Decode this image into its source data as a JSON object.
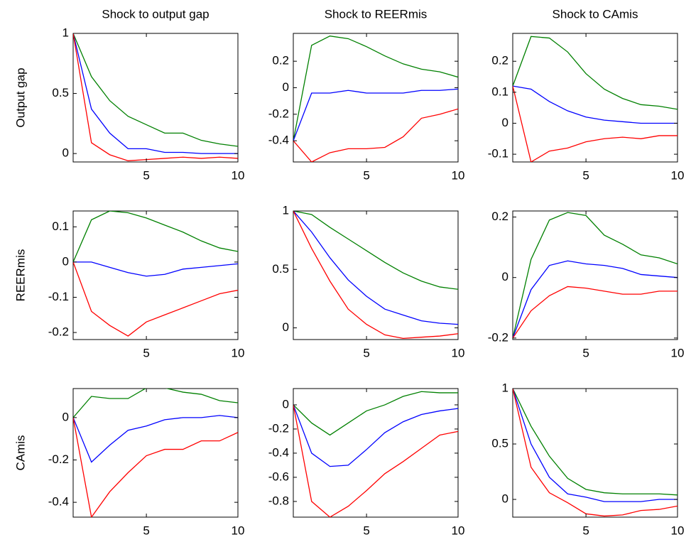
{
  "chart_data": [
    {
      "type": "line",
      "title": "Shock to output gap",
      "ylabel": "Output gap",
      "x": [
        1,
        2,
        3,
        4,
        5,
        6,
        7,
        8,
        9,
        10
      ],
      "xlim": [
        1,
        10
      ],
      "xticks": [
        5,
        10
      ],
      "ylim": [
        -0.07,
        1
      ],
      "yticks": [
        0,
        0.5,
        1
      ],
      "series": [
        {
          "color": "#008000",
          "values": [
            1,
            0.64,
            0.44,
            0.31,
            0.24,
            0.17,
            0.17,
            0.11,
            0.08,
            0.06
          ]
        },
        {
          "color": "#0000ff",
          "values": [
            1,
            0.37,
            0.17,
            0.04,
            0.04,
            0.01,
            0.01,
            0,
            0,
            0
          ]
        },
        {
          "color": "#ff0000",
          "values": [
            1,
            0.09,
            -0.01,
            -0.06,
            -0.05,
            -0.04,
            -0.03,
            -0.04,
            -0.03,
            -0.04
          ]
        }
      ]
    },
    {
      "type": "line",
      "title": "Shock to REERmis",
      "x": [
        1,
        2,
        3,
        4,
        5,
        6,
        7,
        8,
        9,
        10
      ],
      "xlim": [
        1,
        10
      ],
      "xticks": [
        5,
        10
      ],
      "ylim": [
        -0.56,
        0.41
      ],
      "yticks": [
        -0.4,
        -0.2,
        0,
        0.2
      ],
      "series": [
        {
          "color": "#008000",
          "values": [
            -0.4,
            0.32,
            0.39,
            0.37,
            0.31,
            0.24,
            0.18,
            0.14,
            0.12,
            0.08
          ]
        },
        {
          "color": "#0000ff",
          "values": [
            -0.4,
            -0.04,
            -0.04,
            -0.02,
            -0.04,
            -0.04,
            -0.04,
            -0.02,
            -0.02,
            -0.01
          ]
        },
        {
          "color": "#ff0000",
          "values": [
            -0.4,
            -0.56,
            -0.49,
            -0.46,
            -0.46,
            -0.45,
            -0.37,
            -0.23,
            -0.2,
            -0.16
          ]
        }
      ]
    },
    {
      "type": "line",
      "title": "Shock to CAmis",
      "x": [
        1,
        2,
        3,
        4,
        5,
        6,
        7,
        8,
        9,
        10
      ],
      "xlim": [
        1,
        10
      ],
      "xticks": [
        5,
        10
      ],
      "ylim": [
        -0.125,
        0.29
      ],
      "yticks": [
        -0.1,
        0,
        0.1,
        0.2
      ],
      "series": [
        {
          "color": "#008000",
          "values": [
            0.12,
            0.28,
            0.275,
            0.23,
            0.16,
            0.11,
            0.08,
            0.06,
            0.055,
            0.045
          ]
        },
        {
          "color": "#0000ff",
          "values": [
            0.12,
            0.11,
            0.07,
            0.04,
            0.02,
            0.01,
            0.005,
            0,
            0,
            0
          ]
        },
        {
          "color": "#ff0000",
          "values": [
            0.12,
            -0.125,
            -0.09,
            -0.08,
            -0.06,
            -0.05,
            -0.045,
            -0.05,
            -0.04,
            -0.04
          ]
        }
      ]
    },
    {
      "type": "line",
      "ylabel": "REERmis",
      "x": [
        1,
        2,
        3,
        4,
        5,
        6,
        7,
        8,
        9,
        10
      ],
      "xlim": [
        1,
        10
      ],
      "xticks": [
        5,
        10
      ],
      "ylim": [
        -0.22,
        0.145
      ],
      "yticks": [
        -0.2,
        -0.1,
        0,
        0.1
      ],
      "series": [
        {
          "color": "#008000",
          "values": [
            0,
            0.12,
            0.145,
            0.14,
            0.125,
            0.105,
            0.085,
            0.06,
            0.04,
            0.03
          ]
        },
        {
          "color": "#0000ff",
          "values": [
            0,
            0,
            -0.015,
            -0.03,
            -0.04,
            -0.035,
            -0.02,
            -0.015,
            -0.01,
            -0.005
          ]
        },
        {
          "color": "#ff0000",
          "values": [
            0,
            -0.14,
            -0.18,
            -0.21,
            -0.17,
            -0.15,
            -0.13,
            -0.11,
            -0.09,
            -0.08
          ]
        }
      ]
    },
    {
      "type": "line",
      "x": [
        1,
        2,
        3,
        4,
        5,
        6,
        7,
        8,
        9,
        10
      ],
      "xlim": [
        1,
        10
      ],
      "xticks": [
        5,
        10
      ],
      "ylim": [
        -0.1,
        1
      ],
      "yticks": [
        0,
        0.5,
        1
      ],
      "series": [
        {
          "color": "#008000",
          "values": [
            1,
            0.97,
            0.86,
            0.76,
            0.66,
            0.56,
            0.47,
            0.4,
            0.35,
            0.33
          ]
        },
        {
          "color": "#0000ff",
          "values": [
            1,
            0.82,
            0.6,
            0.41,
            0.27,
            0.16,
            0.11,
            0.06,
            0.04,
            0.03
          ]
        },
        {
          "color": "#ff0000",
          "values": [
            1,
            0.68,
            0.4,
            0.16,
            0.03,
            -0.06,
            -0.09,
            -0.08,
            -0.07,
            -0.05
          ]
        }
      ]
    },
    {
      "type": "line",
      "x": [
        1,
        2,
        3,
        4,
        5,
        6,
        7,
        8,
        9,
        10
      ],
      "xlim": [
        1,
        10
      ],
      "xticks": [
        5,
        10
      ],
      "ylim": [
        -0.205,
        0.22
      ],
      "yticks": [
        -0.2,
        0,
        0.2
      ],
      "series": [
        {
          "color": "#008000",
          "values": [
            -0.2,
            0.06,
            0.19,
            0.215,
            0.205,
            0.14,
            0.11,
            0.075,
            0.065,
            0.045
          ]
        },
        {
          "color": "#0000ff",
          "values": [
            -0.2,
            -0.04,
            0.04,
            0.055,
            0.045,
            0.04,
            0.03,
            0.01,
            0.005,
            0
          ]
        },
        {
          "color": "#ff0000",
          "values": [
            -0.2,
            -0.11,
            -0.06,
            -0.03,
            -0.035,
            -0.045,
            -0.055,
            -0.055,
            -0.045,
            -0.045
          ]
        }
      ]
    },
    {
      "type": "line",
      "ylabel": "CAmis",
      "x": [
        1,
        2,
        3,
        4,
        5,
        6,
        7,
        8,
        9,
        10
      ],
      "xlim": [
        1,
        10
      ],
      "xticks": [
        5,
        10
      ],
      "ylim": [
        -0.47,
        0.137
      ],
      "yticks": [
        -0.4,
        -0.2,
        0
      ],
      "series": [
        {
          "color": "#008000",
          "values": [
            0,
            0.1,
            0.09,
            0.09,
            0.14,
            0.14,
            0.12,
            0.11,
            0.08,
            0.07
          ]
        },
        {
          "color": "#0000ff",
          "values": [
            0,
            -0.21,
            -0.13,
            -0.06,
            -0.04,
            -0.01,
            0,
            0,
            0.01,
            0
          ]
        },
        {
          "color": "#ff0000",
          "values": [
            0,
            -0.47,
            -0.35,
            -0.26,
            -0.18,
            -0.15,
            -0.15,
            -0.11,
            -0.11,
            -0.07
          ]
        }
      ]
    },
    {
      "type": "line",
      "x": [
        1,
        2,
        3,
        4,
        5,
        6,
        7,
        8,
        9,
        10
      ],
      "xlim": [
        1,
        10
      ],
      "xticks": [
        5,
        10
      ],
      "ylim": [
        -0.93,
        0.135
      ],
      "yticks": [
        -0.8,
        -0.6,
        -0.4,
        -0.2,
        0
      ],
      "series": [
        {
          "color": "#008000",
          "values": [
            0,
            -0.15,
            -0.25,
            -0.15,
            -0.05,
            0,
            0.07,
            0.11,
            0.1,
            0.1
          ]
        },
        {
          "color": "#0000ff",
          "values": [
            0,
            -0.4,
            -0.51,
            -0.5,
            -0.37,
            -0.23,
            -0.14,
            -0.08,
            -0.05,
            -0.03
          ]
        },
        {
          "color": "#ff0000",
          "values": [
            0,
            -0.8,
            -0.93,
            -0.84,
            -0.71,
            -0.57,
            -0.47,
            -0.36,
            -0.25,
            -0.22
          ]
        }
      ]
    },
    {
      "type": "line",
      "x": [
        1,
        2,
        3,
        4,
        5,
        6,
        7,
        8,
        9,
        10
      ],
      "xlim": [
        1,
        10
      ],
      "xticks": [
        5,
        10
      ],
      "ylim": [
        -0.16,
        1
      ],
      "yticks": [
        0,
        0.5,
        1
      ],
      "series": [
        {
          "color": "#008000",
          "values": [
            1,
            0.66,
            0.39,
            0.19,
            0.09,
            0.06,
            0.05,
            0.05,
            0.05,
            0.04
          ]
        },
        {
          "color": "#0000ff",
          "values": [
            1,
            0.5,
            0.2,
            0.05,
            0.02,
            -0.02,
            -0.02,
            -0.02,
            0,
            0
          ]
        },
        {
          "color": "#ff0000",
          "values": [
            1,
            0.29,
            0.06,
            -0.03,
            -0.13,
            -0.15,
            -0.14,
            -0.1,
            -0.09,
            -0.06
          ]
        }
      ]
    }
  ]
}
